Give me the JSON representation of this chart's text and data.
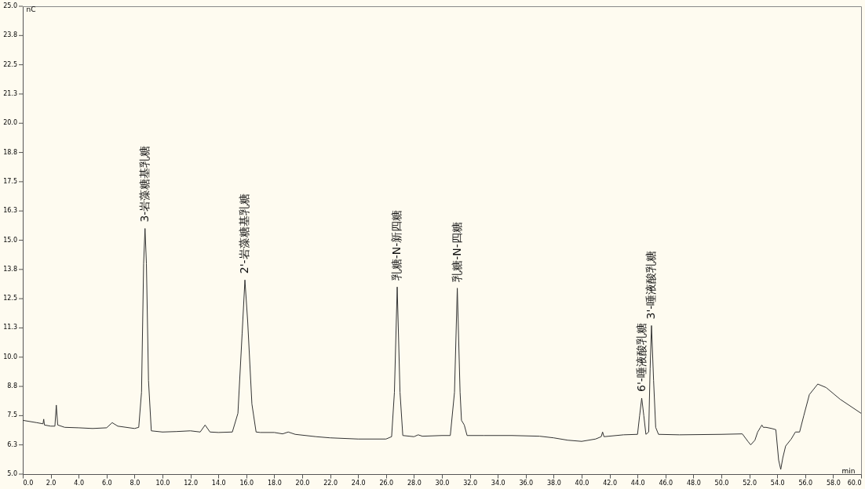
{
  "chart_data": {
    "type": "line",
    "xlabel": "min",
    "ylabel": "nC",
    "x": [
      0,
      1.0,
      1.45,
      1.5,
      1.55,
      2.0,
      2.3,
      2.4,
      2.5,
      3.0,
      4.0,
      5.0,
      6.0,
      6.4,
      6.8,
      8.0,
      8.3,
      8.5,
      8.65,
      8.75,
      8.85,
      9.0,
      9.2,
      10,
      11,
      12,
      12.7,
      13.05,
      13.4,
      14,
      15.0,
      15.4,
      15.7,
      15.9,
      16.1,
      16.4,
      16.7,
      17,
      18,
      18.6,
      19.0,
      19.5,
      21,
      22,
      24,
      26,
      26.4,
      26.6,
      26.8,
      27.0,
      27.2,
      28,
      28.3,
      28.6,
      30,
      30.6,
      30.9,
      31.1,
      31.3,
      31.4,
      31.6,
      31.8,
      33,
      35,
      37,
      38,
      39,
      40.0,
      41,
      41.4,
      41.5,
      41.6,
      43,
      44,
      44.15,
      44.3,
      44.45,
      44.6,
      44.8,
      44.9,
      45.0,
      45.15,
      45.3,
      45.5,
      47,
      50,
      51.5,
      51.9,
      52.1,
      52.4,
      52.6,
      52.8,
      52.9,
      53.0,
      53.2,
      53.6,
      53.9,
      54.1,
      54.25,
      54.4,
      54.6,
      55.0,
      55.3,
      55.6,
      55.9,
      56.3,
      56.9,
      57.5,
      58.5,
      60
    ],
    "series": [
      {
        "color": "#333333",
        "values": [
          7.3,
          7.2,
          7.15,
          7.35,
          7.1,
          7.05,
          7.05,
          7.95,
          7.1,
          7.0,
          6.98,
          6.95,
          6.98,
          7.2,
          7.05,
          6.95,
          7.0,
          8.5,
          14.0,
          15.5,
          14.0,
          9.0,
          6.85,
          6.8,
          6.82,
          6.85,
          6.8,
          7.1,
          6.8,
          6.78,
          6.8,
          7.6,
          11.0,
          13.3,
          11.5,
          8.0,
          6.8,
          6.78,
          6.78,
          6.72,
          6.8,
          6.7,
          6.6,
          6.55,
          6.5,
          6.5,
          6.6,
          8.5,
          13.0,
          8.5,
          6.65,
          6.6,
          6.68,
          6.62,
          6.65,
          6.65,
          8.5,
          12.95,
          8.5,
          7.3,
          7.1,
          6.65,
          6.65,
          6.65,
          6.62,
          6.55,
          6.45,
          6.4,
          6.5,
          6.6,
          6.8,
          6.6,
          6.68,
          6.7,
          7.5,
          8.25,
          7.5,
          6.7,
          6.8,
          9.5,
          11.35,
          9.0,
          7.0,
          6.7,
          6.68,
          6.7,
          6.72,
          6.4,
          6.25,
          6.45,
          6.8,
          7.0,
          7.1,
          7.0,
          7.0,
          6.95,
          6.9,
          5.6,
          5.2,
          5.7,
          6.2,
          6.5,
          6.8,
          6.8,
          7.5,
          8.4,
          8.85,
          8.7,
          8.2,
          7.6
        ]
      }
    ],
    "xlim": [
      0,
      60
    ],
    "xticks": [
      {
        "value": 0,
        "label": "0.0"
      },
      {
        "value": 2,
        "label": "2.0"
      },
      {
        "value": 4,
        "label": "4.0"
      },
      {
        "value": 6,
        "label": "6.0"
      },
      {
        "value": 8,
        "label": "8.0"
      },
      {
        "value": 10,
        "label": "10.0"
      },
      {
        "value": 12,
        "label": "12.0"
      },
      {
        "value": 14,
        "label": "14.0"
      },
      {
        "value": 16,
        "label": "16.0"
      },
      {
        "value": 18,
        "label": "18.0"
      },
      {
        "value": 20,
        "label": "20.0"
      },
      {
        "value": 22,
        "label": "22.0"
      },
      {
        "value": 24,
        "label": "24.0"
      },
      {
        "value": 26,
        "label": "26.0"
      },
      {
        "value": 28,
        "label": "28.0"
      },
      {
        "value": 30,
        "label": "30.0"
      },
      {
        "value": 32,
        "label": "32.0"
      },
      {
        "value": 34,
        "label": "34.0"
      },
      {
        "value": 36,
        "label": "36.0"
      },
      {
        "value": 38,
        "label": "38.0"
      },
      {
        "value": 40,
        "label": "40.0"
      },
      {
        "value": 42,
        "label": "42.0"
      },
      {
        "value": 44,
        "label": "44.0"
      },
      {
        "value": 46,
        "label": "46.0"
      },
      {
        "value": 48,
        "label": "48.0"
      },
      {
        "value": 50,
        "label": "50.0"
      },
      {
        "value": 52,
        "label": "52.0"
      },
      {
        "value": 54,
        "label": "54.0"
      },
      {
        "value": 56,
        "label": "56.0"
      },
      {
        "value": 58,
        "label": "58.0"
      },
      {
        "value": 60,
        "label": "60.0"
      }
    ],
    "ylim": [
      5,
      25
    ],
    "yticks": [
      {
        "value": 5,
        "label": "5.0"
      },
      {
        "value": 6.25,
        "label": "6.3"
      },
      {
        "value": 7.5,
        "label": "7.5"
      },
      {
        "value": 8.75,
        "label": "8.8"
      },
      {
        "value": 10,
        "label": "10.0"
      },
      {
        "value": 11.25,
        "label": "11.3"
      },
      {
        "value": 12.5,
        "label": "12.5"
      },
      {
        "value": 13.75,
        "label": "13.8"
      },
      {
        "value": 15,
        "label": "15.0"
      },
      {
        "value": 16.25,
        "label": "16.3"
      },
      {
        "value": 17.5,
        "label": "17.5"
      },
      {
        "value": 18.75,
        "label": "18.8"
      },
      {
        "value": 20,
        "label": "20.0"
      },
      {
        "value": 21.25,
        "label": "21.3"
      },
      {
        "value": 22.5,
        "label": "22.5"
      },
      {
        "value": 23.75,
        "label": "23.8"
      },
      {
        "value": 25,
        "label": "25.0"
      }
    ],
    "grid": false,
    "annotations": [
      {
        "text": "3-岩藻糖基乳糖",
        "x": 8.75,
        "y": 15.5
      },
      {
        "text": "2'-岩藻糖基乳糖",
        "x": 15.9,
        "y": 13.3
      },
      {
        "text": "乳糖-N-新四糖",
        "x": 26.8,
        "y": 13.0
      },
      {
        "text": "乳糖-N-四糖",
        "x": 31.1,
        "y": 12.95
      },
      {
        "text": "6'-唾液酸乳糖",
        "x": 44.3,
        "y": 8.25
      },
      {
        "text": "3'-唾液酸乳糖",
        "x": 45.0,
        "y": 11.35
      }
    ]
  }
}
